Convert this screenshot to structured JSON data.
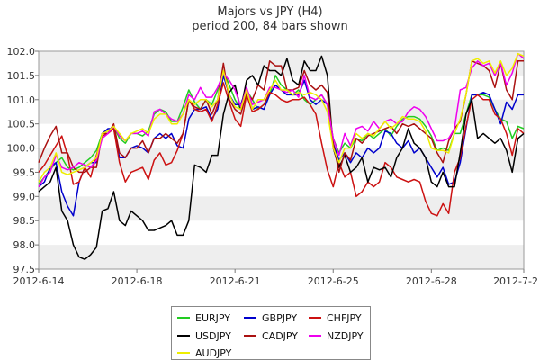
{
  "title_line1": "Majors vs JPY (H4)",
  "title_line2": "period 200, 84 bars shown",
  "chart_data": {
    "type": "line",
    "title": "Majors vs JPY (H4)",
    "subtitle": "period 200, 84 bars shown",
    "x_ticks": [
      "2012-6-14",
      "2012-6-18",
      "2012-6-21",
      "2012-6-25",
      "2012-6-28",
      "2012-7-2"
    ],
    "x_tick_index": [
      0,
      17,
      34,
      51,
      68,
      84
    ],
    "y_ticks": [
      "97.5",
      "98.0",
      "98.5",
      "99.0",
      "99.5",
      "100.0",
      "100.5",
      "101.0",
      "101.5",
      "102.0"
    ],
    "ylim": [
      97.5,
      102.0
    ],
    "n_points": 85,
    "grid": "horizontal alternating bands",
    "legend_placement": "bottom",
    "series": [
      {
        "name": "EURJPY",
        "color": "#22cc22",
        "values": [
          99.25,
          99.4,
          99.55,
          99.7,
          99.8,
          99.6,
          99.55,
          99.6,
          99.7,
          99.8,
          99.95,
          100.3,
          100.35,
          100.45,
          100.2,
          100.1,
          100.3,
          100.3,
          100.25,
          100.35,
          100.7,
          100.8,
          100.75,
          100.55,
          100.55,
          100.85,
          101.2,
          100.95,
          100.8,
          101.0,
          100.9,
          101.2,
          101.6,
          101.3,
          101.0,
          100.8,
          101.2,
          101.0,
          100.8,
          100.9,
          101.1,
          101.5,
          101.3,
          101.2,
          101.1,
          101.2,
          101.0,
          100.9,
          101.0,
          101.1,
          100.9,
          100.2,
          99.9,
          100.1,
          100.0,
          100.2,
          100.15,
          100.3,
          100.2,
          100.3,
          100.4,
          100.25,
          100.45,
          100.6,
          100.65,
          100.65,
          100.6,
          100.45,
          100.25,
          99.95,
          100.0,
          99.95,
          100.3,
          100.3,
          100.7,
          101.1,
          101.1,
          101.1,
          101.05,
          100.8,
          100.6,
          100.55,
          100.2,
          100.45,
          100.4
        ]
      },
      {
        "name": "GBPJPY",
        "color": "#0000cc",
        "values": [
          99.2,
          99.3,
          99.6,
          99.7,
          99.1,
          98.8,
          98.6,
          99.3,
          99.6,
          99.7,
          99.7,
          100.3,
          100.4,
          100.4,
          99.8,
          99.8,
          100.0,
          100.05,
          100.0,
          99.9,
          100.2,
          100.3,
          100.2,
          100.3,
          100.05,
          100.0,
          100.6,
          100.8,
          100.8,
          100.85,
          100.6,
          100.8,
          101.5,
          101.1,
          100.9,
          100.9,
          101.25,
          100.8,
          100.85,
          100.8,
          101.1,
          101.3,
          101.2,
          101.1,
          101.1,
          101.1,
          101.4,
          101.0,
          100.9,
          101.0,
          100.9,
          100.1,
          99.75,
          99.9,
          99.7,
          99.9,
          99.8,
          100.0,
          99.9,
          100.0,
          100.35,
          100.3,
          100.1,
          100.0,
          100.15,
          99.9,
          100.0,
          99.8,
          99.6,
          99.4,
          99.6,
          99.25,
          99.3,
          99.7,
          100.4,
          101.1,
          101.1,
          101.15,
          101.1,
          100.8,
          100.5,
          100.95,
          100.8,
          101.1,
          101.1
        ]
      },
      {
        "name": "CHFJPY",
        "color": "#cc1111",
        "values": [
          99.5,
          99.65,
          99.85,
          100.05,
          100.25,
          99.85,
          99.25,
          99.3,
          99.6,
          99.4,
          99.85,
          100.25,
          100.3,
          100.4,
          99.7,
          99.3,
          99.5,
          99.55,
          99.6,
          99.35,
          99.75,
          99.9,
          99.65,
          99.7,
          99.95,
          100.3,
          101.0,
          100.8,
          100.75,
          100.8,
          100.55,
          100.9,
          101.35,
          100.95,
          100.6,
          100.45,
          101.1,
          100.75,
          100.8,
          100.9,
          101.15,
          101.1,
          101.0,
          100.95,
          101.0,
          101.0,
          101.05,
          100.9,
          100.7,
          100.1,
          99.55,
          99.2,
          99.7,
          99.4,
          99.5,
          99.0,
          99.1,
          99.3,
          99.2,
          99.3,
          99.7,
          99.6,
          99.4,
          99.35,
          99.3,
          99.35,
          99.3,
          98.9,
          98.65,
          98.6,
          98.85,
          98.65,
          99.5,
          99.8,
          100.45,
          101.0,
          101.1,
          101.0,
          101.0,
          100.7,
          100.6,
          100.3,
          99.85,
          100.4,
          100.3
        ]
      },
      {
        "name": "USDJPY",
        "color": "#000000",
        "values": [
          99.1,
          99.2,
          99.3,
          99.6,
          98.7,
          98.5,
          98.0,
          97.75,
          97.7,
          97.8,
          97.95,
          98.7,
          98.75,
          99.1,
          98.5,
          98.4,
          98.7,
          98.6,
          98.5,
          98.3,
          98.3,
          98.35,
          98.4,
          98.5,
          98.2,
          98.2,
          98.5,
          99.65,
          99.6,
          99.5,
          99.85,
          99.85,
          100.7,
          101.15,
          101.3,
          100.8,
          101.4,
          101.5,
          101.3,
          101.7,
          101.6,
          101.6,
          101.5,
          101.85,
          101.4,
          101.3,
          101.8,
          101.6,
          101.6,
          101.9,
          101.5,
          100.0,
          99.6,
          99.85,
          99.5,
          99.6,
          99.8,
          99.3,
          99.6,
          99.55,
          99.6,
          99.4,
          99.8,
          100.0,
          100.4,
          100.1,
          100.0,
          99.8,
          99.3,
          99.2,
          99.5,
          99.2,
          99.2,
          99.9,
          100.7,
          101.0,
          100.2,
          100.3,
          100.2,
          100.1,
          100.2,
          99.95,
          99.5,
          100.2,
          100.3
        ]
      },
      {
        "name": "CADJPY",
        "color": "#aa1111",
        "values": [
          99.7,
          100.0,
          100.25,
          100.45,
          99.9,
          99.9,
          99.6,
          99.5,
          99.5,
          99.6,
          99.6,
          100.3,
          100.3,
          100.5,
          99.9,
          99.8,
          100.0,
          100.0,
          100.15,
          99.9,
          100.2,
          100.2,
          100.3,
          100.2,
          100.1,
          100.3,
          101.0,
          100.85,
          100.8,
          101.0,
          100.7,
          101.0,
          101.75,
          101.0,
          100.8,
          100.7,
          101.15,
          101.0,
          101.3,
          101.2,
          101.8,
          101.7,
          101.7,
          101.2,
          101.2,
          101.25,
          101.6,
          101.3,
          101.2,
          101.3,
          101.15,
          100.1,
          99.5,
          99.9,
          99.75,
          100.2,
          100.1,
          100.25,
          100.3,
          100.35,
          100.4,
          100.45,
          100.3,
          100.5,
          100.45,
          100.5,
          100.4,
          100.3,
          100.2,
          99.9,
          99.7,
          100.15,
          100.4,
          100.55,
          101.1,
          101.8,
          101.75,
          101.7,
          101.6,
          101.25,
          101.75,
          101.2,
          101.0,
          101.8,
          101.8
        ]
      },
      {
        "name": "NZDJPY",
        "color": "#ee00ee",
        "values": [
          99.2,
          99.4,
          99.5,
          99.85,
          99.6,
          99.55,
          99.6,
          99.7,
          99.65,
          99.6,
          99.75,
          100.2,
          100.3,
          100.45,
          100.25,
          100.15,
          100.3,
          100.3,
          100.35,
          100.25,
          100.75,
          100.8,
          100.7,
          100.6,
          100.55,
          100.7,
          101.1,
          101.0,
          101.25,
          101.05,
          101.05,
          101.25,
          101.55,
          101.4,
          101.2,
          100.85,
          101.25,
          100.9,
          100.95,
          101.0,
          101.25,
          101.25,
          101.2,
          101.15,
          101.2,
          101.05,
          101.5,
          101.05,
          101.0,
          101.1,
          100.9,
          100.2,
          99.85,
          100.3,
          100.05,
          100.4,
          100.45,
          100.35,
          100.55,
          100.4,
          100.55,
          100.6,
          100.5,
          100.55,
          100.75,
          100.85,
          100.8,
          100.65,
          100.4,
          100.15,
          100.15,
          100.2,
          100.4,
          101.2,
          101.25,
          101.65,
          101.8,
          101.7,
          101.75,
          101.5,
          101.75,
          101.3,
          101.55,
          101.95,
          101.85
        ]
      },
      {
        "name": "AUDJPY",
        "color": "#eeee00",
        "values": [
          99.3,
          99.5,
          99.6,
          99.9,
          99.5,
          99.45,
          99.5,
          99.55,
          99.6,
          99.7,
          99.8,
          100.3,
          100.35,
          100.45,
          100.3,
          100.15,
          100.3,
          100.35,
          100.4,
          100.3,
          100.6,
          100.7,
          100.7,
          100.5,
          100.5,
          100.7,
          101.0,
          100.9,
          101.0,
          101.0,
          100.85,
          101.0,
          101.6,
          101.1,
          100.85,
          100.8,
          101.2,
          100.8,
          101.0,
          101.0,
          101.2,
          101.4,
          101.2,
          101.2,
          101.1,
          101.15,
          101.1,
          101.15,
          101.1,
          101.0,
          100.75,
          100.0,
          99.7,
          100.0,
          100.0,
          100.3,
          100.2,
          100.3,
          100.25,
          100.4,
          100.55,
          100.4,
          100.5,
          100.65,
          100.6,
          100.6,
          100.55,
          100.35,
          100.0,
          99.95,
          99.95,
          99.9,
          100.3,
          100.6,
          101.1,
          101.8,
          101.85,
          101.75,
          101.8,
          101.55,
          101.8,
          101.5,
          101.65,
          101.95,
          101.9
        ]
      }
    ]
  },
  "legend": {
    "items": [
      {
        "label": "EURJPY",
        "color": "#22cc22"
      },
      {
        "label": "GBPJPY",
        "color": "#0000cc"
      },
      {
        "label": "CHFJPY",
        "color": "#cc1111"
      },
      {
        "label": "USDJPY",
        "color": "#000000"
      },
      {
        "label": "CADJPY",
        "color": "#aa1111"
      },
      {
        "label": "NZDJPY",
        "color": "#ee00ee"
      },
      {
        "label": "AUDJPY",
        "color": "#eeee00"
      }
    ]
  }
}
